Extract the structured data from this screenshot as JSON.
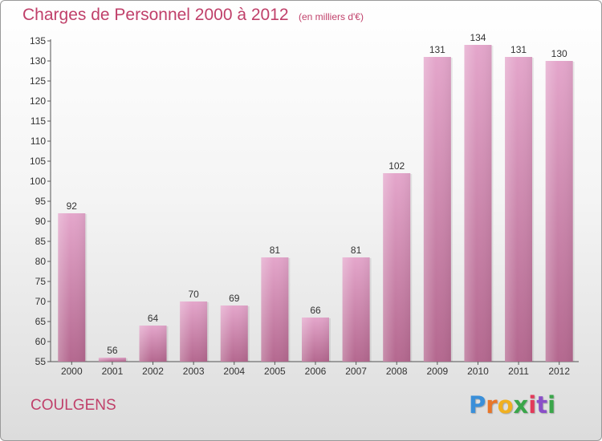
{
  "header": {
    "title": "Charges de Personnel 2000 à 2012",
    "subtitle": "(en milliers d'€)"
  },
  "footer": {
    "place": "COULGENS",
    "logo": "Proxiti"
  },
  "colors": {
    "bar_top": "#e4a6cb",
    "bar_bottom": "#b4688f",
    "text_accent": "#c0406a"
  },
  "chart_data": {
    "type": "bar",
    "categories": [
      "2000",
      "2001",
      "2002",
      "2003",
      "2004",
      "2005",
      "2006",
      "2007",
      "2008",
      "2009",
      "2010",
      "2011",
      "2012"
    ],
    "values": [
      92,
      56,
      64,
      70,
      69,
      81,
      66,
      81,
      102,
      131,
      134,
      131,
      130
    ],
    "title": "Charges de Personnel 2000 à 2012",
    "subtitle": "(en milliers d'€)",
    "ylim": [
      55,
      135
    ],
    "yticks": [
      55,
      60,
      65,
      70,
      75,
      80,
      85,
      90,
      95,
      100,
      105,
      110,
      115,
      120,
      125,
      130,
      135
    ],
    "grid": false,
    "legend": "none"
  }
}
